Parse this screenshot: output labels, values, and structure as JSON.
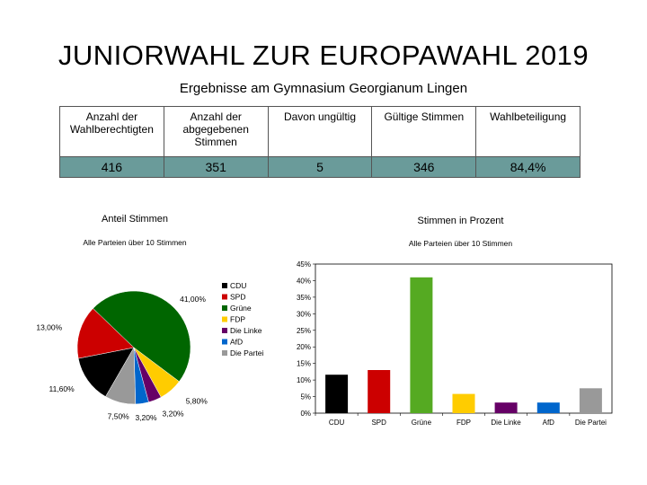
{
  "header": {
    "title": "JUNIORWAHL ZUR EUROPAWAHL 2019",
    "subtitle": "Ergebnisse am Gymnasium Georgianum Lingen"
  },
  "stats_table": {
    "headers": [
      "Anzahl der Wahlberechtigten",
      "Anzahl der abgegebenen Stimmen",
      "Davon ungültig",
      "Gültige Stimmen",
      "Wahlbeteiligung"
    ],
    "values": [
      "416",
      "351",
      "5",
      "346",
      "84,4%"
    ]
  },
  "chart_data": [
    {
      "type": "pie",
      "title": "Anteil Stimmen",
      "subtitle": "Alle Parteien über 10 Stimmen",
      "categories": [
        "CDU",
        "SPD",
        "Grüne",
        "FDP",
        "Die Linke",
        "AfD",
        "Die Partei"
      ],
      "values": [
        11.6,
        13.0,
        41.0,
        5.8,
        3.2,
        3.2,
        7.5
      ],
      "labels": [
        "11,60%",
        "13,00%",
        "41,00%",
        "5,80%",
        "3,20%",
        "3,20%",
        "7,50%"
      ],
      "colors": [
        "#000000",
        "#cc0000",
        "#006600",
        "#ffcc00",
        "#660066",
        "#0066cc",
        "#999999"
      ],
      "legend": "right"
    },
    {
      "type": "bar",
      "title": "Stimmen in Prozent",
      "subtitle": "Alle Parteien über 10 Stimmen",
      "categories": [
        "CDU",
        "SPD",
        "Grüne",
        "FDP",
        "Die Linke",
        "AfD",
        "Die Partei"
      ],
      "values": [
        11.6,
        13.0,
        41.0,
        5.8,
        3.2,
        3.2,
        7.5
      ],
      "colors": [
        "#000000",
        "#cc0000",
        "#55aa22",
        "#ffcc00",
        "#660066",
        "#0066cc",
        "#999999"
      ],
      "ylim": [
        0,
        45
      ],
      "yticks": [
        "0%",
        "5%",
        "10%",
        "15%",
        "20%",
        "25%",
        "30%",
        "35%",
        "40%",
        "45%"
      ],
      "grid": false,
      "legend": "none"
    }
  ]
}
